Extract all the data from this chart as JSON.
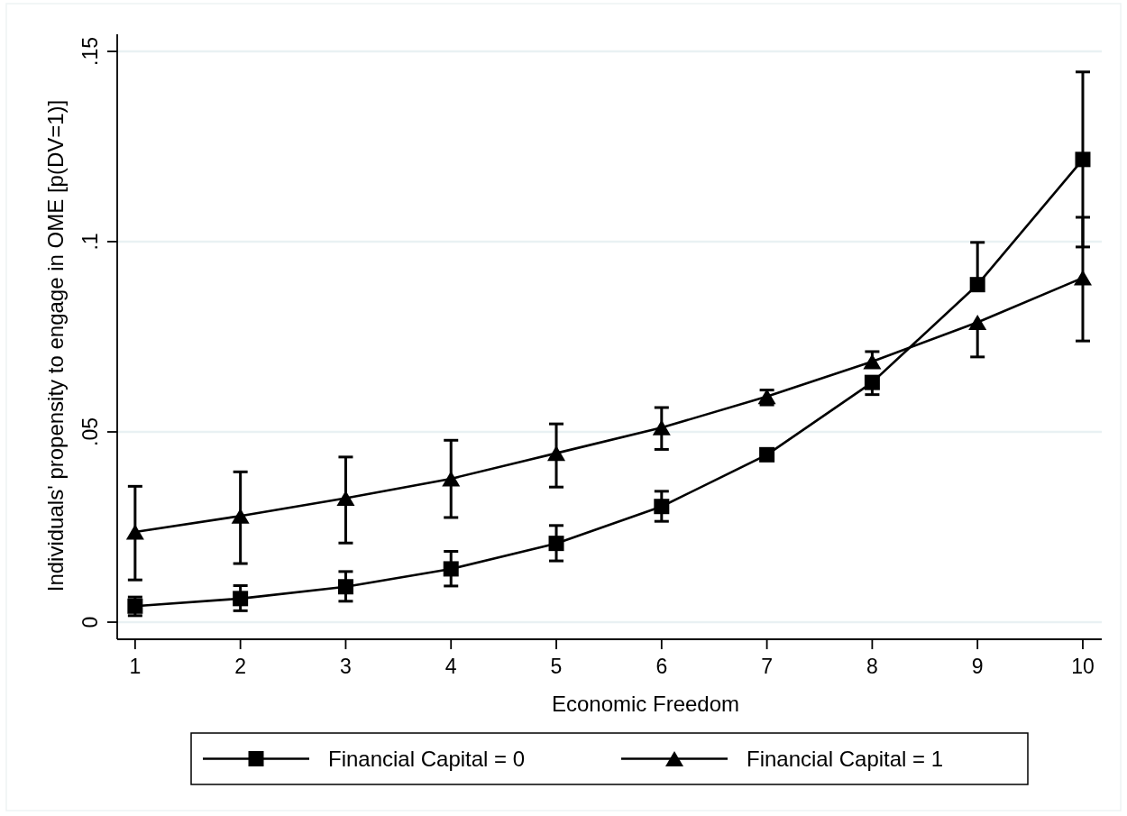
{
  "chart_data": {
    "type": "line",
    "xlabel": "Economic Freedom",
    "ylabel": "Individuals' propensity to engage in OME [p(DV=1)]",
    "x": [
      1,
      2,
      3,
      4,
      5,
      6,
      7,
      8,
      9,
      10
    ],
    "xlim": [
      0.83,
      10.18
    ],
    "xticks": [
      1,
      2,
      3,
      4,
      5,
      6,
      7,
      8,
      9,
      10
    ],
    "ylim": [
      -0.0045,
      0.1545
    ],
    "yticks": [
      0,
      {
        "value": 0.05,
        "label": ".05"
      },
      {
        "value": 0.1,
        "label": ".1"
      },
      {
        "value": 0.15,
        "label": ".15"
      }
    ],
    "grid": "y",
    "legend": "bottom",
    "series": [
      {
        "name": "Financial Capital = 0",
        "color": "#000000",
        "marker": "square",
        "values": [
          0.0042,
          0.0062,
          0.0093,
          0.014,
          0.0207,
          0.0304,
          0.044,
          0.063,
          0.0887,
          0.1216
        ],
        "errors": [
          [
            0.0017,
            0.0066
          ],
          [
            0.003,
            0.0096
          ],
          [
            0.0055,
            0.0133
          ],
          [
            0.0095,
            0.0186
          ],
          [
            0.0161,
            0.0254
          ],
          [
            0.0265,
            0.0344
          ],
          null,
          [
            0.0598,
            0.063
          ],
          [
            0.0887,
            0.0998
          ],
          [
            0.0986,
            0.1446
          ]
        ]
      },
      {
        "name": "Financial Capital = 1",
        "color": "#000000",
        "marker": "triangle",
        "values": [
          0.0237,
          0.0279,
          0.0326,
          0.0377,
          0.0444,
          0.0511,
          0.0593,
          0.0685,
          0.0788,
          0.0905
        ],
        "errors": [
          [
            0.0111,
            0.0357
          ],
          [
            0.0154,
            0.0395
          ],
          [
            0.0208,
            0.0434
          ],
          [
            0.0275,
            0.0478
          ],
          [
            0.0355,
            0.0521
          ],
          [
            0.0454,
            0.0564
          ],
          [
            0.0571,
            0.061
          ],
          [
            0.0685,
            0.0711
          ],
          [
            0.0697,
            0.0788
          ],
          [
            0.0739,
            0.1064
          ]
        ]
      }
    ]
  }
}
